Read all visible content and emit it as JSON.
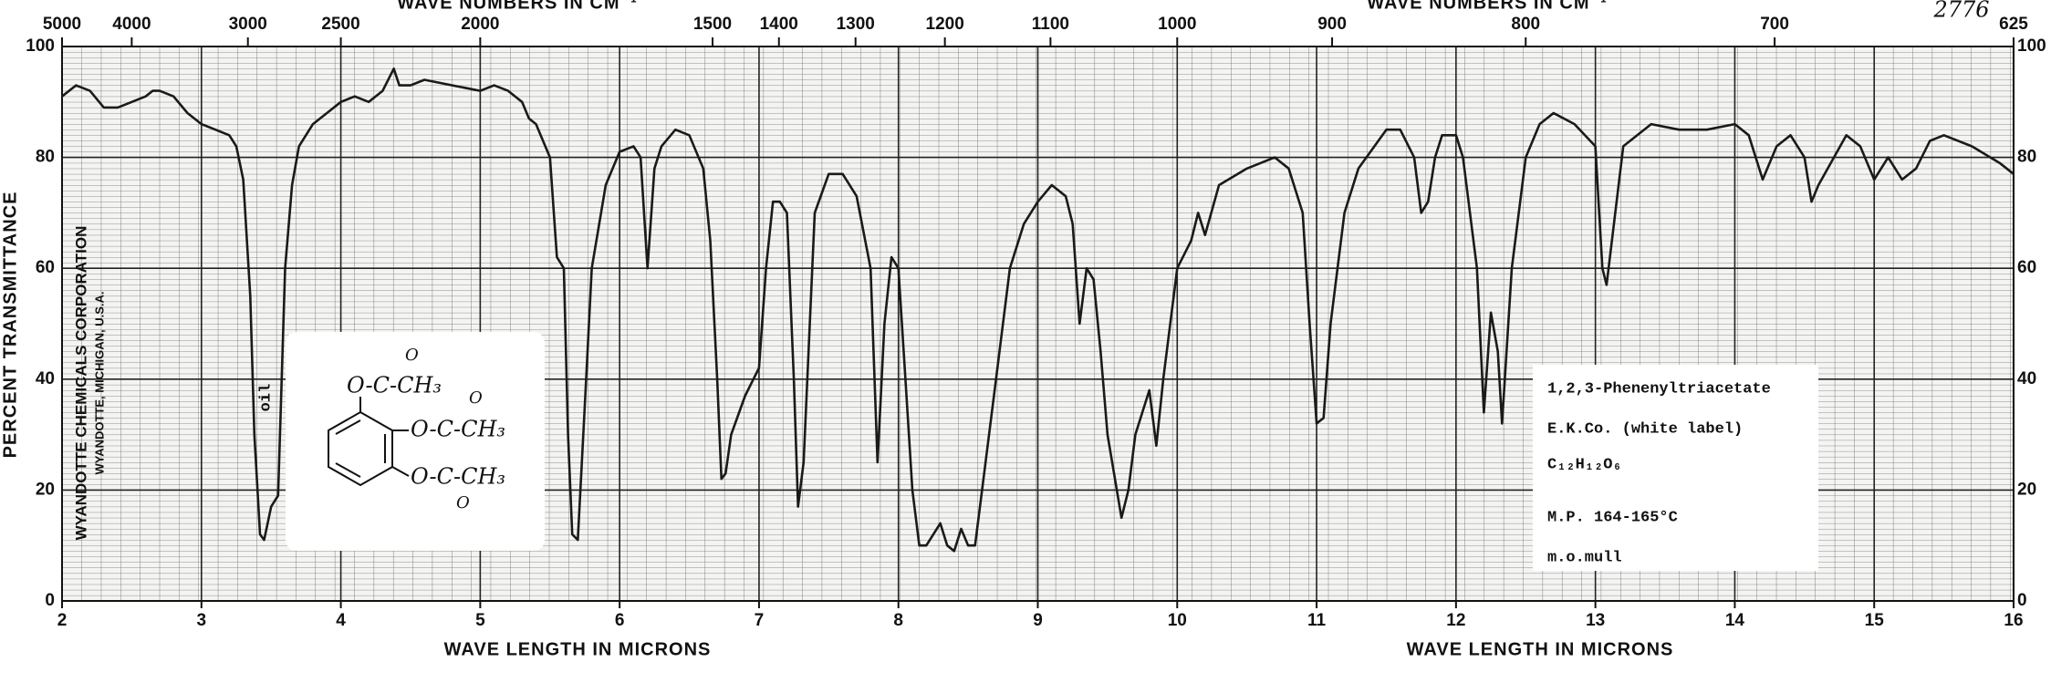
{
  "chart_data": {
    "type": "line",
    "x_label": "WAVE LENGTH IN MICRONS",
    "x_label_right": "WAVE LENGTH IN MICRONS",
    "x2_label": "WAVE NUMBERS IN CM⁻¹",
    "x2_label_right": "WAVE NUMBERS IN CM⁻¹",
    "y_label": "PERCENT TRANSMITTANCE",
    "corner_note": "2776",
    "publisher": "WYANDOTTE CHEMICALS CORPORATION",
    "publisher_place": "WYANDOTTE, MICHIGAN, U.S.A.",
    "annotation": "oil",
    "xlim": [
      2,
      16
    ],
    "xticks": [
      2,
      3,
      4,
      5,
      6,
      7,
      8,
      9,
      10,
      11,
      12,
      13,
      14,
      15,
      16
    ],
    "x2ticks": [
      5000,
      4000,
      3000,
      2500,
      2000,
      1500,
      1400,
      1300,
      1200,
      1100,
      1000,
      900,
      800,
      700,
      625
    ],
    "ylim": [
      0,
      100
    ],
    "yticks": [
      0,
      20,
      40,
      60,
      80,
      100
    ],
    "grid": true,
    "x": [
      2.0,
      2.1,
      2.2,
      2.3,
      2.4,
      2.5,
      2.6,
      2.65,
      2.7,
      2.8,
      2.9,
      3.0,
      3.1,
      3.2,
      3.25,
      3.3,
      3.35,
      3.38,
      3.42,
      3.45,
      3.5,
      3.55,
      3.6,
      3.65,
      3.7,
      3.8,
      3.9,
      4.0,
      4.1,
      4.2,
      4.3,
      4.38,
      4.42,
      4.5,
      4.6,
      4.8,
      5.0,
      5.1,
      5.2,
      5.3,
      5.35,
      5.4,
      5.5,
      5.55,
      5.6,
      5.63,
      5.66,
      5.7,
      5.75,
      5.8,
      5.9,
      6.0,
      6.1,
      6.15,
      6.2,
      6.25,
      6.3,
      6.4,
      6.5,
      6.6,
      6.65,
      6.7,
      6.73,
      6.76,
      6.8,
      6.9,
      7.0,
      7.05,
      7.1,
      7.15,
      7.2,
      7.25,
      7.28,
      7.32,
      7.4,
      7.5,
      7.6,
      7.7,
      7.8,
      7.85,
      7.9,
      7.95,
      8.0,
      8.05,
      8.1,
      8.15,
      8.2,
      8.3,
      8.35,
      8.4,
      8.45,
      8.5,
      8.55,
      8.6,
      8.7,
      8.8,
      8.9,
      9.0,
      9.1,
      9.2,
      9.25,
      9.3,
      9.35,
      9.4,
      9.45,
      9.5,
      9.6,
      9.65,
      9.7,
      9.8,
      9.85,
      9.9,
      10.0,
      10.1,
      10.15,
      10.2,
      10.3,
      10.5,
      10.7,
      10.8,
      10.9,
      10.95,
      11.0,
      11.05,
      11.1,
      11.2,
      11.3,
      11.5,
      11.6,
      11.7,
      11.75,
      11.8,
      11.85,
      11.9,
      12.0,
      12.05,
      12.15,
      12.2,
      12.25,
      12.3,
      12.33,
      12.4,
      12.5,
      12.6,
      12.7,
      12.85,
      13.0,
      13.05,
      13.08,
      13.2,
      13.4,
      13.6,
      13.8,
      14.0,
      14.1,
      14.2,
      14.3,
      14.4,
      14.5,
      14.55,
      14.6,
      14.8,
      14.9,
      15.0,
      15.1,
      15.2,
      15.3,
      15.4,
      15.5,
      15.7,
      15.9,
      16.0
    ],
    "series": [
      {
        "color": "#1a1a1a",
        "values": [
          91,
          93,
          92,
          89,
          89,
          90,
          91,
          92,
          92,
          91,
          88,
          86,
          85,
          84,
          82,
          76,
          55,
          30,
          12,
          11,
          17,
          19,
          60,
          75,
          82,
          86,
          88,
          90,
          91,
          90,
          92,
          96,
          93,
          93,
          94,
          93,
          92,
          93,
          92,
          90,
          87,
          86,
          80,
          62,
          60,
          30,
          12,
          11,
          35,
          60,
          75,
          81,
          82,
          80,
          60,
          78,
          82,
          85,
          84,
          78,
          65,
          40,
          22,
          23,
          30,
          37,
          42,
          60,
          72,
          72,
          70,
          40,
          17,
          25,
          70,
          77,
          77,
          73,
          60,
          25,
          50,
          62,
          60,
          40,
          20,
          10,
          10,
          14,
          10,
          9,
          13,
          10,
          10,
          20,
          40,
          60,
          68,
          72,
          75,
          73,
          68,
          50,
          60,
          58,
          45,
          30,
          15,
          20,
          30,
          38,
          28,
          40,
          60,
          65,
          70,
          66,
          75,
          78,
          80,
          78,
          70,
          50,
          32,
          33,
          50,
          70,
          78,
          85,
          85,
          80,
          70,
          72,
          80,
          84,
          84,
          80,
          60,
          34,
          52,
          45,
          32,
          60,
          80,
          86,
          88,
          86,
          82,
          60,
          57,
          82,
          86,
          85,
          85,
          86,
          84,
          76,
          82,
          84,
          80,
          72,
          75,
          84,
          82,
          76,
          80,
          76,
          78,
          83,
          84,
          82,
          79,
          77
        ]
      }
    ]
  },
  "sample": {
    "name": "1,2,3-Phenenyltriacetate",
    "source": "E.K.Co. (white label)",
    "formula": "C₁₂H₁₂O₆",
    "melting_point": "M.P. 164-165°C",
    "phase": "m.o.mull"
  },
  "structure": {
    "groups": [
      "O-C-CH₃",
      "O-C-CH₃",
      "O-C-CH₃"
    ],
    "carbonyl": [
      "O",
      "O",
      "O"
    ]
  }
}
